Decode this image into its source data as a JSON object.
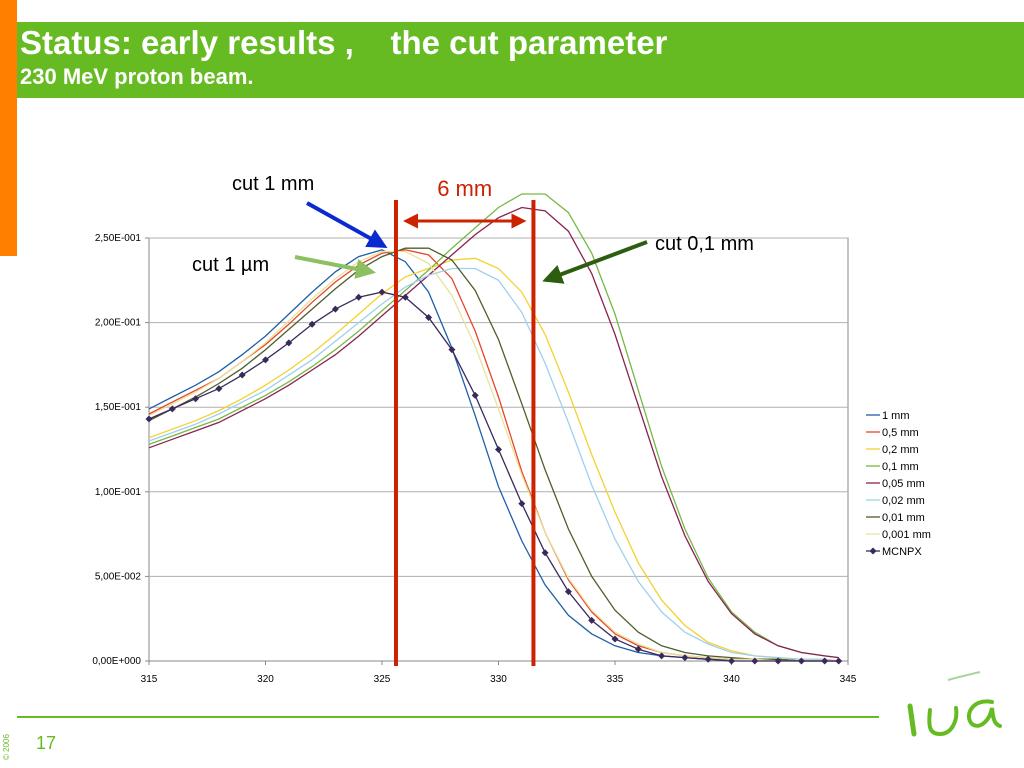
{
  "slide": {
    "title": "Status: early results ,    the cut parameter",
    "subtitle": "230 MeV proton beam.",
    "page_number": "17",
    "copyright": "© 2006"
  },
  "colors": {
    "title_band": "#66bb22",
    "accent_orange": "#ff8000",
    "marker_red": "#cc2200"
  },
  "annotations": {
    "cut_1mm": "cut 1 mm",
    "cut_1um": "cut 1 µm",
    "cut_01mm": "cut 0,1 mm",
    "width_label": "6 mm"
  },
  "chart_data": {
    "type": "line",
    "xlim": [
      315,
      345
    ],
    "ylim": [
      0,
      0.25
    ],
    "x_ticks": [
      "315",
      "320",
      "325",
      "330",
      "335",
      "340",
      "345"
    ],
    "y_ticks": [
      "0,00E+000",
      "5,00E-002",
      "1,00E-001",
      "1,50E-001",
      "2,00E-001",
      "2,50E-001"
    ],
    "grid": "horizontal",
    "legend": "right",
    "vertical_markers": [
      325.6,
      331.5
    ],
    "x": [
      315,
      316,
      317,
      318,
      319,
      320,
      321,
      322,
      323,
      324,
      325,
      326,
      327,
      328,
      329,
      330,
      331,
      332,
      333,
      334,
      335,
      336,
      337,
      338,
      339,
      340,
      341,
      342,
      343,
      344,
      344.6
    ],
    "series": [
      {
        "name": "1 mm",
        "color": "#1f5fa8",
        "values": [
          0.149,
          0.156,
          0.163,
          0.171,
          0.181,
          0.192,
          0.205,
          0.218,
          0.23,
          0.239,
          0.243,
          0.236,
          0.218,
          0.185,
          0.145,
          0.103,
          0.071,
          0.045,
          0.027,
          0.016,
          0.009,
          0.005,
          0.003,
          0.002,
          0.001,
          0.001,
          0.001,
          0.001,
          0,
          0,
          0
        ]
      },
      {
        "name": "0,5 mm",
        "color": "#e8452a",
        "values": [
          0.146,
          0.153,
          0.16,
          0.167,
          0.177,
          0.187,
          0.199,
          0.212,
          0.224,
          0.234,
          0.241,
          0.243,
          0.24,
          0.226,
          0.195,
          0.156,
          0.112,
          0.076,
          0.048,
          0.029,
          0.016,
          0.009,
          0.005,
          0.003,
          0.002,
          0.001,
          0.001,
          0.001,
          0,
          0,
          0
        ]
      },
      {
        "name": "0,2 mm",
        "color": "#f2d22e",
        "values": [
          0.132,
          0.137,
          0.142,
          0.148,
          0.155,
          0.163,
          0.172,
          0.182,
          0.193,
          0.205,
          0.217,
          0.227,
          0.232,
          0.237,
          0.238,
          0.232,
          0.218,
          0.193,
          0.159,
          0.122,
          0.088,
          0.058,
          0.036,
          0.021,
          0.011,
          0.006,
          0.003,
          0.002,
          0.001,
          0.001,
          0
        ]
      },
      {
        "name": "0,1 mm",
        "color": "#77b843",
        "values": [
          0.128,
          0.133,
          0.138,
          0.143,
          0.15,
          0.157,
          0.165,
          0.174,
          0.184,
          0.195,
          0.207,
          0.219,
          0.231,
          0.244,
          0.256,
          0.268,
          0.276,
          0.276,
          0.265,
          0.241,
          0.205,
          0.16,
          0.115,
          0.078,
          0.049,
          0.029,
          0.017,
          0.009,
          0.005,
          0.003,
          0.002
        ]
      },
      {
        "name": "0,05 mm",
        "color": "#8b2252",
        "values": [
          0.126,
          0.131,
          0.136,
          0.141,
          0.148,
          0.155,
          0.163,
          0.172,
          0.181,
          0.192,
          0.204,
          0.216,
          0.228,
          0.24,
          0.252,
          0.262,
          0.268,
          0.266,
          0.254,
          0.229,
          0.193,
          0.151,
          0.109,
          0.074,
          0.047,
          0.028,
          0.016,
          0.009,
          0.005,
          0.003,
          0.002
        ]
      },
      {
        "name": "0,02 mm",
        "color": "#9fd0ee",
        "values": [
          0.13,
          0.135,
          0.14,
          0.146,
          0.153,
          0.16,
          0.169,
          0.178,
          0.189,
          0.2,
          0.211,
          0.221,
          0.228,
          0.232,
          0.232,
          0.225,
          0.206,
          0.176,
          0.141,
          0.104,
          0.072,
          0.047,
          0.029,
          0.017,
          0.01,
          0.005,
          0.003,
          0.002,
          0.001,
          0.001,
          0
        ]
      },
      {
        "name": "0,01 mm",
        "color": "#4e5e2a",
        "values": [
          0.142,
          0.149,
          0.156,
          0.164,
          0.173,
          0.184,
          0.196,
          0.208,
          0.22,
          0.231,
          0.239,
          0.244,
          0.244,
          0.237,
          0.219,
          0.19,
          0.152,
          0.113,
          0.078,
          0.05,
          0.03,
          0.017,
          0.009,
          0.005,
          0.003,
          0.002,
          0.001,
          0.001,
          0,
          0,
          0
        ]
      },
      {
        "name": "0,001 mm",
        "color": "#eae29a",
        "values": [
          0.145,
          0.152,
          0.159,
          0.167,
          0.177,
          0.188,
          0.201,
          0.214,
          0.226,
          0.236,
          0.242,
          0.242,
          0.235,
          0.216,
          0.186,
          0.149,
          0.11,
          0.076,
          0.049,
          0.03,
          0.017,
          0.01,
          0.005,
          0.003,
          0.002,
          0.001,
          0.001,
          0,
          0,
          0,
          0
        ]
      },
      {
        "name": "MCNPX",
        "color": "#3a2a5c",
        "marker": true,
        "values": [
          0.143,
          0.149,
          0.155,
          0.161,
          0.169,
          0.178,
          0.188,
          0.199,
          0.208,
          0.215,
          0.218,
          0.215,
          0.203,
          0.184,
          0.157,
          0.125,
          0.093,
          0.064,
          0.041,
          0.024,
          0.013,
          0.007,
          0.003,
          0.002,
          0.001,
          0,
          0,
          0,
          0,
          0,
          0
        ]
      }
    ]
  }
}
